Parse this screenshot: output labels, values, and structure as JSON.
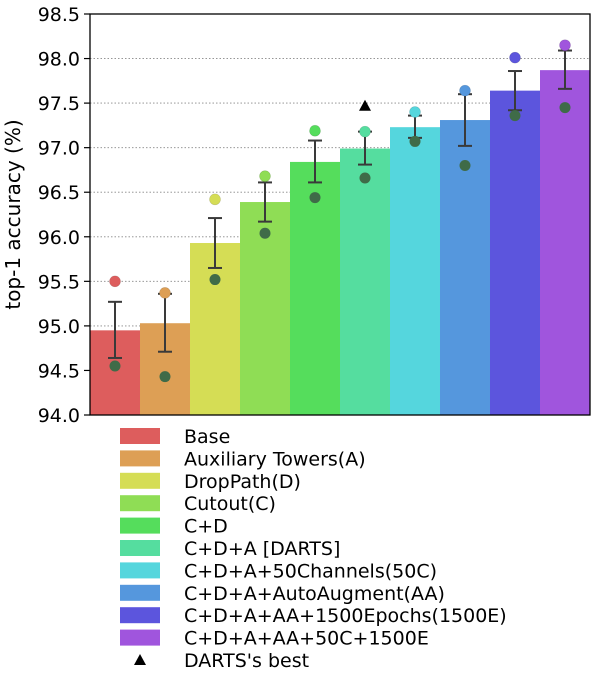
{
  "chart_data": {
    "type": "bar",
    "ylabel": "top-1 accuracy (%)",
    "xlabel": "",
    "title": "",
    "ylim": [
      94.0,
      98.5
    ],
    "yticks": [
      "94.0",
      "94.5",
      "95.0",
      "95.5",
      "96.0",
      "96.5",
      "97.0",
      "97.5",
      "98.0",
      "98.5"
    ],
    "grid": "horizontal dotted",
    "legend_position": "below",
    "series": [
      {
        "name": "Base",
        "mean": 94.95,
        "err_low": 94.64,
        "err_high": 95.27,
        "run_high": 95.5,
        "run_low": 94.55,
        "color": "#dd5d5d"
      },
      {
        "name": "Auxiliary Towers(A)",
        "mean": 95.03,
        "err_low": 94.71,
        "err_high": 95.36,
        "run_high": 95.37,
        "run_low": 94.43,
        "color": "#dd9f55"
      },
      {
        "name": "DropPath(D)",
        "mean": 95.93,
        "err_low": 95.65,
        "err_high": 96.21,
        "run_high": 96.42,
        "run_low": 95.52,
        "color": "#d5dd55"
      },
      {
        "name": "Cutout(C)",
        "mean": 96.39,
        "err_low": 96.17,
        "err_high": 96.61,
        "run_high": 96.68,
        "run_low": 96.04,
        "color": "#8fdd55"
      },
      {
        "name": "C+D",
        "mean": 96.84,
        "err_low": 96.61,
        "err_high": 97.08,
        "run_high": 97.19,
        "run_low": 96.44,
        "color": "#55dd5c"
      },
      {
        "name": "C+D+A [DARTS]",
        "mean": 96.99,
        "err_low": 96.81,
        "err_high": 97.18,
        "run_high": 97.18,
        "run_low": 96.66,
        "color": "#55dd9f",
        "darts_best": 97.47
      },
      {
        "name": "C+D+A+50Channels(50C)",
        "mean": 97.23,
        "err_low": 97.11,
        "err_high": 97.36,
        "run_high": 97.4,
        "run_low": 97.07,
        "color": "#55d6dd"
      },
      {
        "name": "C+D+A+AutoAugment(AA)",
        "mean": 97.31,
        "err_low": 97.02,
        "err_high": 97.6,
        "run_high": 97.64,
        "run_low": 96.8,
        "color": "#5597dd"
      },
      {
        "name": "C+D+A+AA+1500Epochs(1500E)",
        "mean": 97.64,
        "err_low": 97.42,
        "err_high": 97.86,
        "run_high": 98.01,
        "run_low": 97.36,
        "color": "#5c55dd"
      },
      {
        "name": "C+D+A+AA+50C+1500E",
        "mean": 97.87,
        "err_low": 97.66,
        "err_high": 98.09,
        "run_high": 98.15,
        "run_low": 97.45,
        "color": "#a055dd"
      }
    ],
    "legend": [
      "Base",
      "Auxiliary Towers(A)",
      "DropPath(D)",
      "Cutout(C)",
      "C+D",
      "C+D+A [DARTS]",
      "C+D+A+50Channels(50C)",
      "C+D+A+AutoAugment(AA)",
      "C+D+A+AA+1500Epochs(1500E)",
      "C+D+A+AA+50C+1500E",
      "DARTS's best"
    ]
  }
}
